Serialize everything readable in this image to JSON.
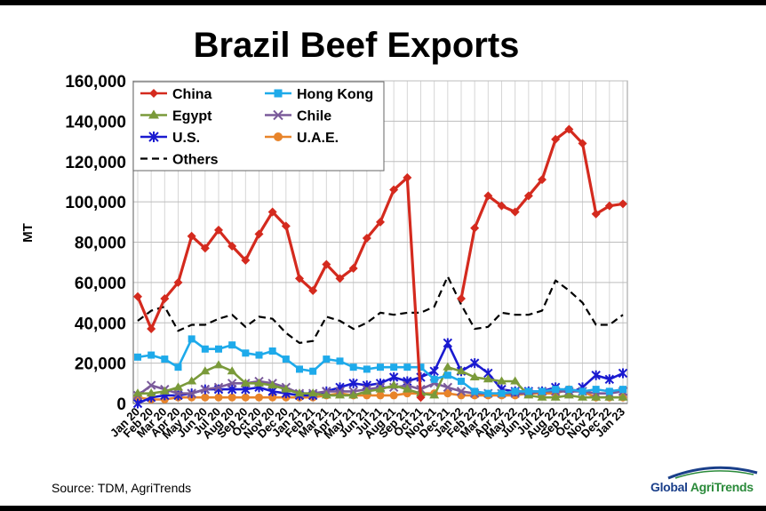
{
  "chart_data": {
    "type": "line",
    "title": "Brazil Beef Exports",
    "ylabel": "MT",
    "xlabel": "",
    "ylim": [
      0,
      160000
    ],
    "yticks": [
      0,
      20000,
      40000,
      60000,
      80000,
      100000,
      120000,
      140000,
      160000
    ],
    "ytick_labels": [
      "0",
      "20,000",
      "40,000",
      "60,000",
      "80,000",
      "100,000",
      "120,000",
      "140,000",
      "160,000"
    ],
    "grid": true,
    "legend_position": "top-left",
    "categories": [
      "Jan 20",
      "Feb 20",
      "Mar 20",
      "Apr 20",
      "May 20",
      "Jun 20",
      "Jul 20",
      "Aug 20",
      "Sep 20",
      "Oct 20",
      "Nov 20",
      "Dec 20",
      "Jan 21",
      "Feb 21",
      "Mar 21",
      "Apr 21",
      "May 21",
      "Jun 21",
      "Jul 21",
      "Aug 21",
      "Sep 21",
      "Oct 21",
      "Nov 21",
      "Dec 21",
      "Jan 22",
      "Feb 22",
      "Mar 22",
      "Apr 22",
      "May 22",
      "Jun 22",
      "Jul 22",
      "Aug 22",
      "Sep 22",
      "Oct 22",
      "Nov 22",
      "Dec 22",
      "Jan 23"
    ],
    "series": [
      {
        "name": "China",
        "color": "#d42a1e",
        "marker": "diamond",
        "dash": false,
        "values": [
          53000,
          37000,
          52000,
          60000,
          83000,
          77000,
          86000,
          78000,
          71000,
          84000,
          95000,
          88000,
          62000,
          56000,
          69000,
          62000,
          67000,
          82000,
          90000,
          106000,
          112000,
          3000,
          null,
          null,
          52000,
          87000,
          103000,
          98000,
          95000,
          103000,
          111000,
          131000,
          136000,
          129000,
          94000,
          98000,
          99000
        ]
      },
      {
        "name": "Hong Kong",
        "color": "#1eaaea",
        "marker": "square",
        "dash": false,
        "values": [
          23000,
          24000,
          22000,
          18000,
          32000,
          27000,
          27000,
          29000,
          25000,
          24000,
          26000,
          22000,
          17000,
          16000,
          22000,
          21000,
          18000,
          17000,
          18000,
          18000,
          18000,
          18000,
          12000,
          14000,
          11000,
          6000,
          5000,
          5000,
          6000,
          6000,
          6000,
          7000,
          7000,
          6000,
          7000,
          6000,
          7000
        ]
      },
      {
        "name": "Egypt",
        "color": "#7a9a3a",
        "marker": "triangle",
        "dash": false,
        "values": [
          5000,
          5000,
          6000,
          8000,
          11000,
          16000,
          19000,
          16000,
          10000,
          10000,
          9000,
          7000,
          5000,
          5000,
          4000,
          4000,
          4000,
          6000,
          7000,
          9000,
          7000,
          5000,
          4000,
          18000,
          16000,
          13000,
          12000,
          11000,
          11000,
          4000,
          3000,
          3000,
          4000,
          3000,
          3000,
          3000,
          3000
        ]
      },
      {
        "name": "Chile",
        "color": "#7a5a9a",
        "marker": "x",
        "dash": false,
        "values": [
          4000,
          9000,
          7000,
          5000,
          5000,
          7000,
          8000,
          10000,
          10000,
          11000,
          10000,
          8000,
          5000,
          5000,
          6000,
          6000,
          6000,
          7000,
          8000,
          8000,
          9000,
          7000,
          10000,
          8000,
          6000,
          5000,
          5000,
          5000,
          5000,
          5000,
          6000,
          6000,
          6000,
          6000,
          5000,
          5000,
          6000
        ]
      },
      {
        "name": "U.S.",
        "color": "#1a1ad0",
        "marker": "star",
        "dash": false,
        "values": [
          0,
          3000,
          4000,
          4000,
          5000,
          7000,
          7000,
          7000,
          7000,
          8000,
          6000,
          5000,
          4000,
          4000,
          6000,
          8000,
          10000,
          9000,
          10000,
          13000,
          11000,
          13000,
          16000,
          30000,
          16000,
          20000,
          15000,
          7000,
          6000,
          6000,
          6000,
          8000,
          5000,
          8000,
          14000,
          12000,
          15000
        ]
      },
      {
        "name": "U.A.E.",
        "color": "#e8842a",
        "marker": "circle",
        "dash": false,
        "values": [
          3000,
          2000,
          2000,
          3000,
          3000,
          3000,
          3000,
          3000,
          3000,
          3000,
          3000,
          3000,
          3000,
          3000,
          4000,
          5000,
          4000,
          4000,
          4000,
          4000,
          5000,
          5000,
          5000,
          5000,
          4000,
          4000,
          4000,
          4000,
          4000,
          5000,
          5000,
          5000,
          7000,
          6000,
          3000,
          3000,
          3000
        ]
      },
      {
        "name": "Others",
        "color": "#000000",
        "marker": "none",
        "dash": true,
        "values": [
          41000,
          46000,
          48000,
          36000,
          39000,
          39000,
          42000,
          44000,
          38000,
          43000,
          42000,
          35000,
          30000,
          31000,
          43000,
          41000,
          37000,
          40000,
          45000,
          44000,
          45000,
          45000,
          48000,
          63000,
          49000,
          37000,
          38000,
          45000,
          44000,
          44000,
          46000,
          61000,
          56000,
          50000,
          39000,
          39000,
          44000
        ]
      }
    ]
  },
  "footer": {
    "source": "Source: TDM, AgriTrends",
    "logo_global": "Global",
    "logo_agri": "AgriTrends"
  }
}
